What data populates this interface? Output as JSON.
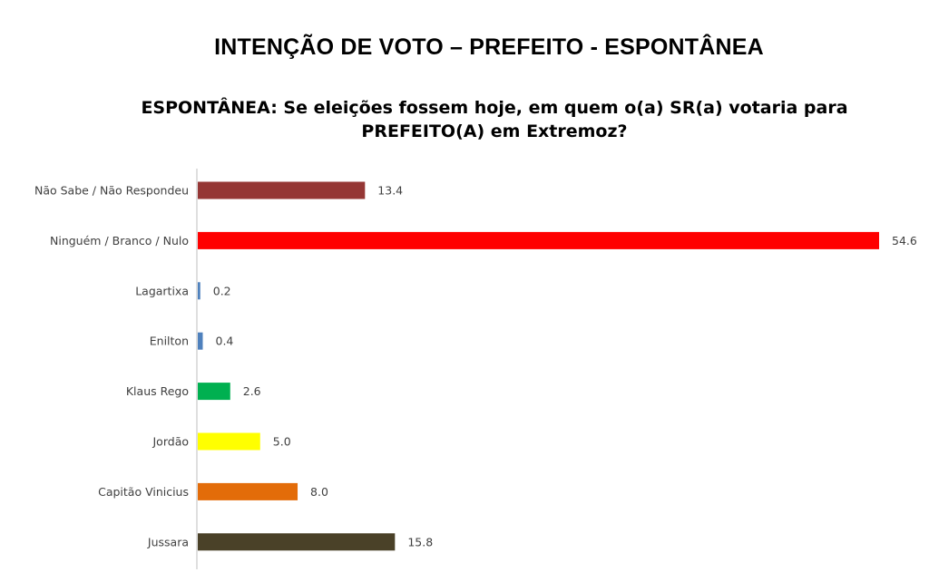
{
  "title": "INTENÇÃO DE VOTO – PREFEITO - ESPONTÂNEA",
  "subtitle": "ESPONTÂNEA: Se eleições fossem hoje, em quem o(a) SR(a) votaria para PREFEITO(A) em Extremoz?",
  "chart_data": {
    "type": "bar",
    "orientation": "horizontal",
    "categories": [
      "Não Sabe / Não Respondeu",
      "Ninguém / Branco / Nulo",
      "Lagartixa",
      "Enilton",
      "Klaus Rego",
      "Jordão",
      "Capitão Vinicius",
      "Jussara"
    ],
    "values": [
      13.4,
      54.6,
      0.2,
      0.4,
      2.6,
      5.0,
      8.0,
      15.8
    ],
    "value_labels": [
      "13.4",
      "54.6",
      "0.2",
      "0.4",
      "2.6",
      "5.0",
      "8.0",
      "15.8"
    ],
    "colors": [
      "#953735",
      "#ff0000",
      "#4f81bd",
      "#4f81bd",
      "#00b050",
      "#ffff00",
      "#e36c09",
      "#4a4128"
    ],
    "xlim": [
      0,
      54.6
    ],
    "grid": false,
    "legend": "none"
  }
}
